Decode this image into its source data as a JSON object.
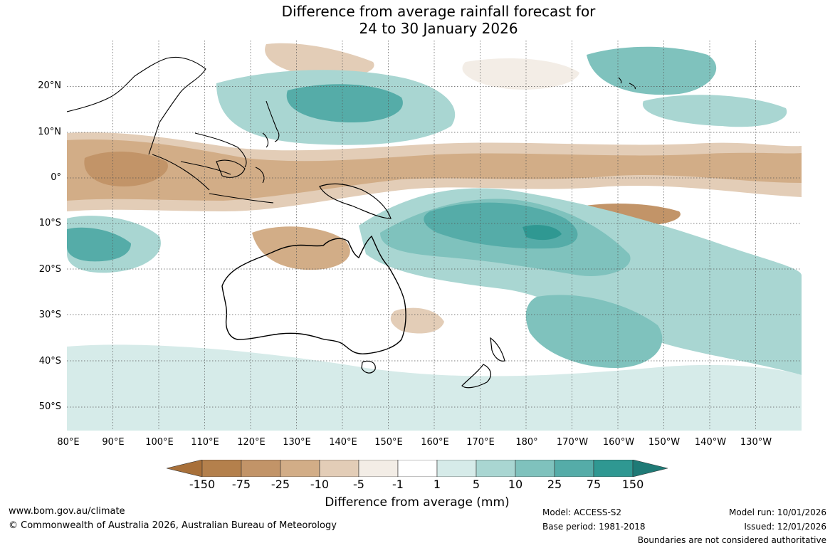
{
  "title_line1": "Difference from average rainfall forecast for",
  "title_line2": "24 to 30 January 2026",
  "lat_labels": [
    "20°N",
    "10°N",
    "0°",
    "10°S",
    "20°S",
    "30°S",
    "40°S",
    "50°S"
  ],
  "lon_labels": [
    "80°E",
    "90°E",
    "100°E",
    "110°E",
    "120°E",
    "130°E",
    "140°E",
    "150°E",
    "160°E",
    "170°E",
    "180°",
    "170°W",
    "160°W",
    "150°W",
    "140°W",
    "130°W"
  ],
  "legend": {
    "title": "Difference from average (mm)",
    "ticks": [
      "-150",
      "-75",
      "-25",
      "-10",
      "-5",
      "-1",
      "1",
      "5",
      "10",
      "25",
      "75",
      "150"
    ],
    "colors": [
      "#a8703a",
      "#c29468",
      "#d2ad87",
      "#e3cdb7",
      "#f3ede6",
      "#ffffff",
      "#d6ebe9",
      "#a9d6d2",
      "#7fc2bd",
      "#55aca8",
      "#2f9892",
      "#1f7a76"
    ],
    "bins": [
      {
        "range": "< -150",
        "color": "#a8703a"
      },
      {
        "range": "-150 to -75",
        "color": "#b4804c"
      },
      {
        "range": "-75 to -25",
        "color": "#c29468"
      },
      {
        "range": "-25 to -10",
        "color": "#d2ad87"
      },
      {
        "range": "-10 to -5",
        "color": "#e3cdb7"
      },
      {
        "range": "-5 to -1",
        "color": "#f3ede6"
      },
      {
        "range": "-1 to 1",
        "color": "#ffffff"
      },
      {
        "range": "1 to 5",
        "color": "#d6ebe9"
      },
      {
        "range": "5 to 10",
        "color": "#a9d6d2"
      },
      {
        "range": "10 to 25",
        "color": "#7fc2bd"
      },
      {
        "range": "25 to 75",
        "color": "#55aca8"
      },
      {
        "range": "75 to 150",
        "color": "#2f9892"
      },
      {
        "range": "> 150",
        "color": "#1f7a76"
      }
    ]
  },
  "footer": {
    "website": "www.bom.gov.au/climate",
    "copyright": "© Commonwealth of Australia 2026, Australian Bureau of Meteorology",
    "model": "Model: ACCESS-S2",
    "base_period": "Base period: 1981-2018",
    "model_run": "Model run: 10/01/2026",
    "issued": "Issued: 12/01/2026",
    "disclaimer": "Boundaries are not considered authoritative"
  }
}
